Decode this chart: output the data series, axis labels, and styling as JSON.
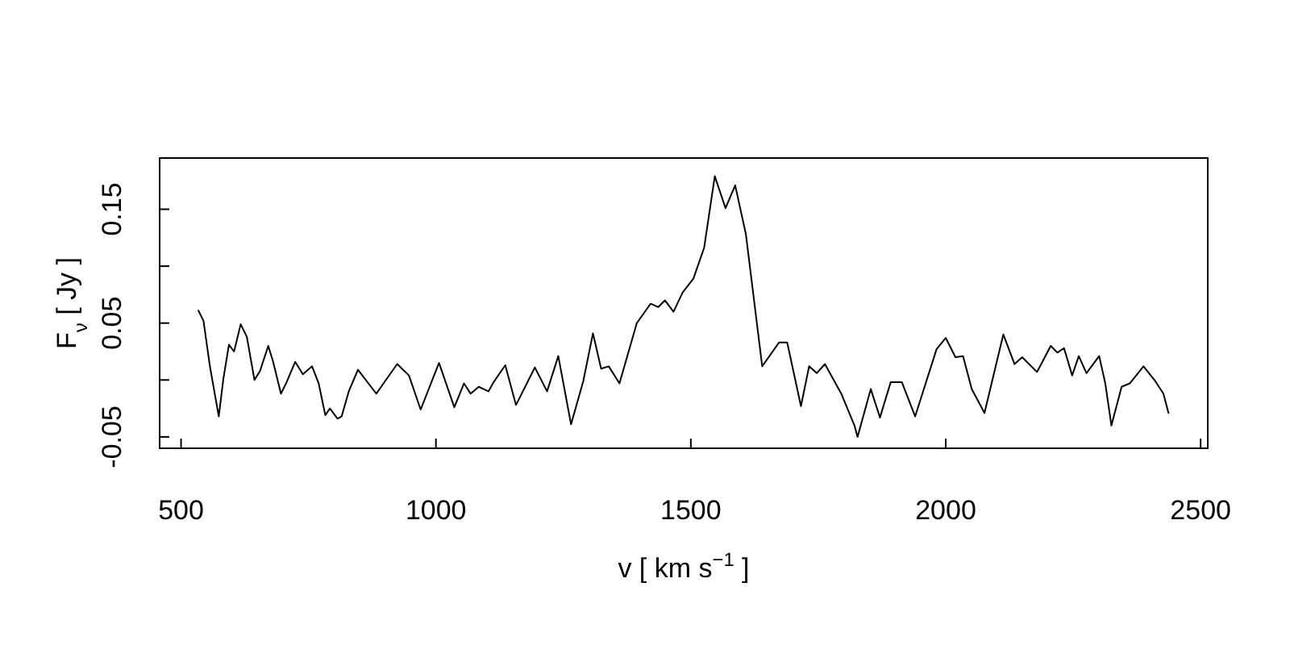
{
  "chart_data": {
    "type": "line",
    "xlabel": "v [ km s$^{−1}$ ]",
    "ylabel": "F$_{ν}$ [ Jy ]",
    "xlim": [
      458,
      2514
    ],
    "ylim": [
      -0.06,
      0.195
    ],
    "xticks": [
      500,
      1000,
      1500,
      2000,
      2500
    ],
    "yticks": [
      -0.05,
      {
        "value": 0,
        "label": null
      },
      0.05,
      {
        "value": 0.1,
        "label": null
      },
      0.15
    ],
    "series": [
      {
        "color": "#000000",
        "x": [
          534,
          544,
          557,
          574,
          583,
          594,
          604,
          617,
          629,
          644,
          655,
          671,
          680,
          696,
          706,
          724,
          739,
          757,
          770,
          783,
          792,
          807,
          815,
          829,
          847,
          883,
          924,
          947,
          970,
          1006,
          1036,
          1055,
          1068,
          1084,
          1103,
          1113,
          1136,
          1157,
          1194,
          1218,
          1240,
          1265,
          1289,
          1308,
          1324,
          1339,
          1360,
          1394,
          1421,
          1436,
          1449,
          1466,
          1484,
          1505,
          1526,
          1547,
          1568,
          1587,
          1608,
          1640,
          1673,
          1689,
          1716,
          1732,
          1747,
          1763,
          1795,
          1821,
          1827,
          1853,
          1871,
          1892,
          1914,
          1940,
          1982,
          2000,
          2019,
          2034,
          2051,
          2076,
          2113,
          2135,
          2150,
          2179,
          2206,
          2219,
          2232,
          2248,
          2261,
          2276,
          2301,
          2313,
          2325,
          2345,
          2361,
          2388,
          2411,
          2427,
          2437
        ],
        "values": [
          0.061,
          0.052,
          0.011,
          -0.032,
          0.001,
          0.031,
          0.025,
          0.049,
          0.038,
          0.0,
          0.008,
          0.03,
          0.017,
          -0.012,
          -0.003,
          0.016,
          0.005,
          0.012,
          -0.003,
          -0.031,
          -0.025,
          -0.034,
          -0.032,
          -0.01,
          0.009,
          -0.012,
          0.014,
          0.004,
          -0.026,
          0.015,
          -0.024,
          -0.003,
          -0.012,
          -0.006,
          -0.01,
          -0.002,
          0.013,
          -0.022,
          0.011,
          -0.01,
          0.021,
          -0.039,
          -0.001,
          0.041,
          0.01,
          0.012,
          -0.003,
          0.05,
          0.067,
          0.064,
          0.07,
          0.06,
          0.077,
          0.089,
          0.116,
          0.179,
          0.151,
          0.171,
          0.128,
          0.012,
          0.033,
          0.033,
          -0.023,
          0.012,
          0.006,
          0.014,
          -0.012,
          -0.04,
          -0.05,
          -0.008,
          -0.033,
          -0.002,
          -0.002,
          -0.032,
          0.027,
          0.037,
          0.02,
          0.021,
          -0.008,
          -0.029,
          0.04,
          0.014,
          0.02,
          0.007,
          0.03,
          0.024,
          0.028,
          0.004,
          0.021,
          0.006,
          0.021,
          -0.003,
          -0.04,
          -0.006,
          -0.003,
          0.012,
          -0.001,
          -0.012,
          -0.029
        ]
      }
    ]
  }
}
